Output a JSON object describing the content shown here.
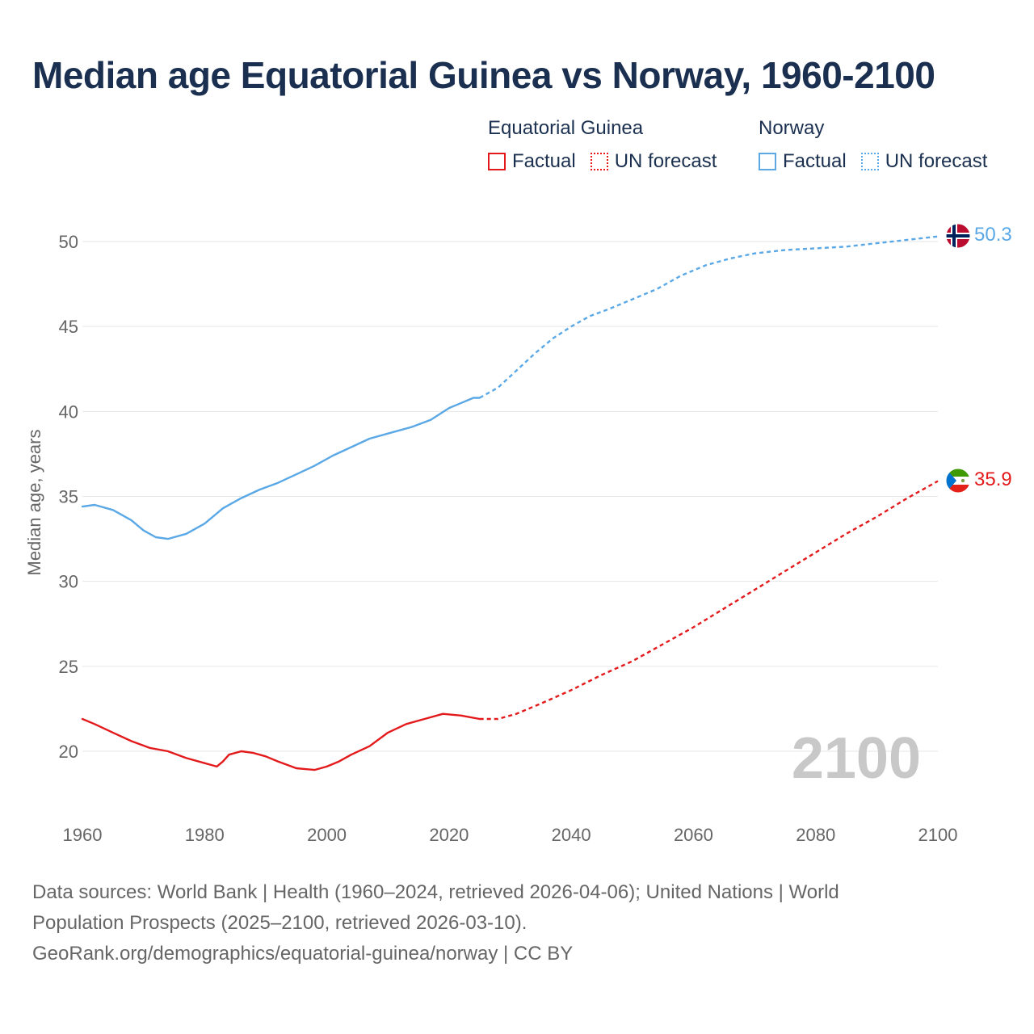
{
  "title": "Median age Equatorial Guinea vs Norway, 1960-2100",
  "legend": {
    "groups": [
      {
        "name": "Equatorial Guinea",
        "factual_label": "Factual",
        "forecast_label": "UN forecast",
        "color": "#e31a1c"
      },
      {
        "name": "Norway",
        "factual_label": "Factual",
        "forecast_label": "UN forecast",
        "color": "#5aa8e6"
      }
    ]
  },
  "year_watermark": "2100",
  "footer": {
    "line1": "Data sources: World Bank | Health (1960–2024, retrieved 2026-04-06); United Nations | World",
    "line2": "Population Prospects (2025–2100, retrieved 2026-03-10).",
    "line3": "GeoRank.org/demographics/equatorial-guinea/norway | CC BY"
  },
  "chart_data": {
    "type": "line",
    "title": "Median age Equatorial Guinea vs Norway, 1960-2100",
    "xlabel": "",
    "ylabel": "Median age, years",
    "xlim": [
      1960,
      2100
    ],
    "ylim": [
      17,
      52
    ],
    "xticks": [
      1960,
      1980,
      2000,
      2020,
      2040,
      2060,
      2080,
      2100
    ],
    "yticks": [
      20,
      25,
      30,
      35,
      40,
      45,
      50
    ],
    "grid": "horizontal",
    "forecast_start": 2025,
    "series": [
      {
        "name": "Norway",
        "color": "#5aa8e6",
        "end_label": "50.3",
        "flag": "norway",
        "points": [
          [
            1960,
            34.4
          ],
          [
            1962,
            34.5
          ],
          [
            1965,
            34.2
          ],
          [
            1968,
            33.6
          ],
          [
            1970,
            33.0
          ],
          [
            1972,
            32.6
          ],
          [
            1974,
            32.5
          ],
          [
            1977,
            32.8
          ],
          [
            1980,
            33.4
          ],
          [
            1983,
            34.3
          ],
          [
            1986,
            34.9
          ],
          [
            1989,
            35.4
          ],
          [
            1992,
            35.8
          ],
          [
            1995,
            36.3
          ],
          [
            1998,
            36.8
          ],
          [
            2001,
            37.4
          ],
          [
            2004,
            37.9
          ],
          [
            2007,
            38.4
          ],
          [
            2010,
            38.7
          ],
          [
            2014,
            39.1
          ],
          [
            2017,
            39.5
          ],
          [
            2020,
            40.2
          ],
          [
            2022,
            40.5
          ],
          [
            2024,
            40.8
          ],
          [
            2025,
            40.8
          ],
          [
            2028,
            41.4
          ],
          [
            2031,
            42.4
          ],
          [
            2034,
            43.4
          ],
          [
            2037,
            44.3
          ],
          [
            2040,
            45.0
          ],
          [
            2043,
            45.6
          ],
          [
            2046,
            46.0
          ],
          [
            2050,
            46.6
          ],
          [
            2054,
            47.2
          ],
          [
            2058,
            48.0
          ],
          [
            2062,
            48.6
          ],
          [
            2066,
            49.0
          ],
          [
            2070,
            49.3
          ],
          [
            2075,
            49.5
          ],
          [
            2080,
            49.6
          ],
          [
            2085,
            49.7
          ],
          [
            2090,
            49.9
          ],
          [
            2095,
            50.1
          ],
          [
            2100,
            50.3
          ]
        ]
      },
      {
        "name": "Equatorial Guinea",
        "color": "#e31a1c",
        "end_label": "35.9",
        "flag": "equatorial-guinea",
        "points": [
          [
            1960,
            21.9
          ],
          [
            1962,
            21.6
          ],
          [
            1965,
            21.1
          ],
          [
            1968,
            20.6
          ],
          [
            1971,
            20.2
          ],
          [
            1974,
            20.0
          ],
          [
            1977,
            19.6
          ],
          [
            1980,
            19.3
          ],
          [
            1982,
            19.1
          ],
          [
            1983,
            19.4
          ],
          [
            1984,
            19.8
          ],
          [
            1986,
            20.0
          ],
          [
            1988,
            19.9
          ],
          [
            1990,
            19.7
          ],
          [
            1992,
            19.4
          ],
          [
            1995,
            19.0
          ],
          [
            1998,
            18.9
          ],
          [
            2000,
            19.1
          ],
          [
            2002,
            19.4
          ],
          [
            2004,
            19.8
          ],
          [
            2007,
            20.3
          ],
          [
            2010,
            21.1
          ],
          [
            2013,
            21.6
          ],
          [
            2016,
            21.9
          ],
          [
            2019,
            22.2
          ],
          [
            2022,
            22.1
          ],
          [
            2025,
            21.9
          ],
          [
            2028,
            21.9
          ],
          [
            2031,
            22.2
          ],
          [
            2035,
            22.8
          ],
          [
            2040,
            23.6
          ],
          [
            2045,
            24.5
          ],
          [
            2050,
            25.3
          ],
          [
            2055,
            26.3
          ],
          [
            2060,
            27.3
          ],
          [
            2065,
            28.4
          ],
          [
            2070,
            29.5
          ],
          [
            2075,
            30.6
          ],
          [
            2080,
            31.7
          ],
          [
            2085,
            32.8
          ],
          [
            2090,
            33.8
          ],
          [
            2095,
            34.9
          ],
          [
            2100,
            35.9
          ]
        ]
      }
    ]
  }
}
